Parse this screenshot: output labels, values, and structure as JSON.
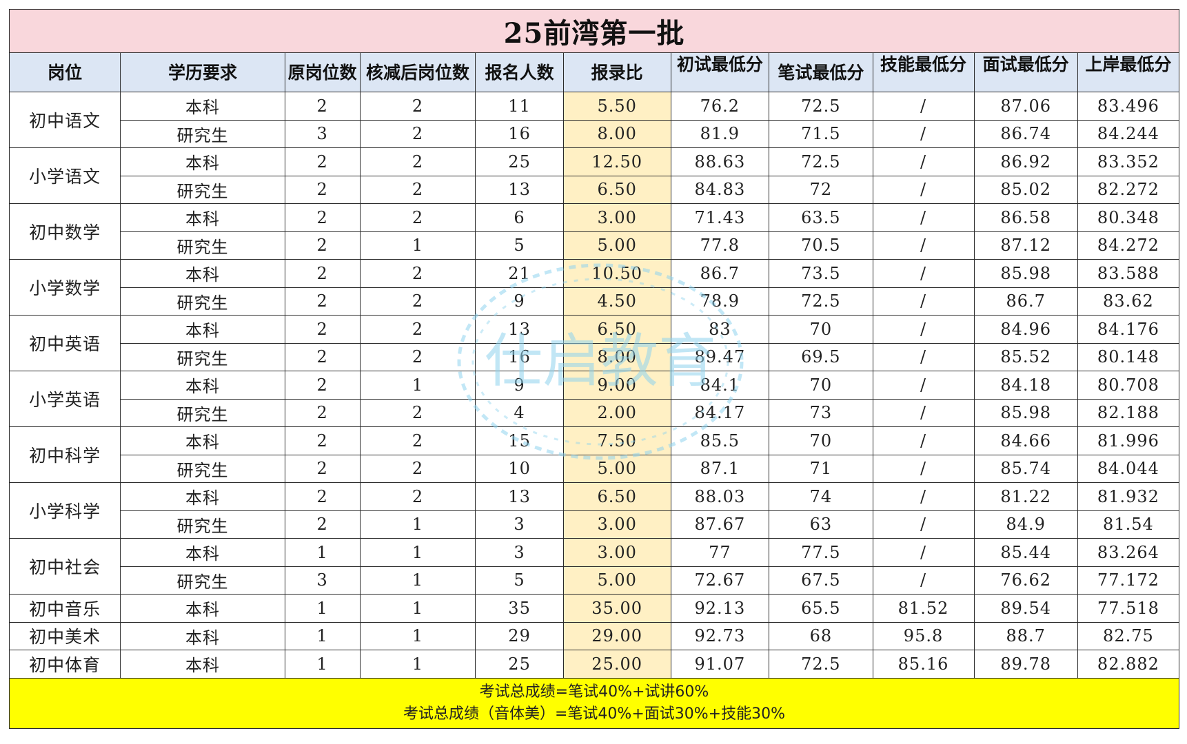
{
  "title": "25前湾第一批",
  "headers": [
    "岗位",
    "学历要求",
    "原岗位数",
    "核减后岗位数",
    "报名人数",
    "报录比",
    "初试最低分",
    "笔试最低分",
    "技能最低分",
    "面试最低分",
    "上岸最低分"
  ],
  "groups": [
    {
      "position": "初中语文",
      "rows": [
        [
          "本科",
          "2",
          "2",
          "11",
          "5.50",
          "76.2",
          "72.5",
          "/",
          "87.06",
          "83.496"
        ],
        [
          "研究生",
          "3",
          "2",
          "16",
          "8.00",
          "81.9",
          "71.5",
          "/",
          "86.74",
          "84.244"
        ]
      ]
    },
    {
      "position": "小学语文",
      "rows": [
        [
          "本科",
          "2",
          "2",
          "25",
          "12.50",
          "88.63",
          "72.5",
          "/",
          "86.92",
          "83.352"
        ],
        [
          "研究生",
          "2",
          "2",
          "13",
          "6.50",
          "84.83",
          "72",
          "/",
          "85.02",
          "82.272"
        ]
      ]
    },
    {
      "position": "初中数学",
      "rows": [
        [
          "本科",
          "2",
          "2",
          "6",
          "3.00",
          "71.43",
          "63.5",
          "/",
          "86.58",
          "80.348"
        ],
        [
          "研究生",
          "2",
          "1",
          "5",
          "5.00",
          "77.8",
          "70.5",
          "/",
          "87.12",
          "84.272"
        ]
      ]
    },
    {
      "position": "小学数学",
      "rows": [
        [
          "本科",
          "2",
          "2",
          "21",
          "10.50",
          "86.7",
          "73.5",
          "/",
          "85.98",
          "83.588"
        ],
        [
          "研究生",
          "2",
          "2",
          "9",
          "4.50",
          "78.9",
          "72.5",
          "/",
          "86.7",
          "83.62"
        ]
      ]
    },
    {
      "position": "初中英语",
      "rows": [
        [
          "本科",
          "2",
          "2",
          "13",
          "6.50",
          "83",
          "70",
          "/",
          "84.96",
          "84.176"
        ],
        [
          "研究生",
          "2",
          "2",
          "16",
          "8.00",
          "89.47",
          "69.5",
          "/",
          "85.52",
          "80.148"
        ]
      ]
    },
    {
      "position": "小学英语",
      "rows": [
        [
          "本科",
          "2",
          "1",
          "9",
          "9.00",
          "84.1",
          "70",
          "/",
          "84.18",
          "80.708"
        ],
        [
          "研究生",
          "2",
          "2",
          "4",
          "2.00",
          "84.17",
          "73",
          "/",
          "85.98",
          "82.188"
        ]
      ]
    },
    {
      "position": "初中科学",
      "rows": [
        [
          "本科",
          "2",
          "2",
          "15",
          "7.50",
          "85.5",
          "70",
          "/",
          "84.66",
          "81.996"
        ],
        [
          "研究生",
          "2",
          "2",
          "10",
          "5.00",
          "87.1",
          "71",
          "/",
          "85.74",
          "84.044"
        ]
      ]
    },
    {
      "position": "小学科学",
      "rows": [
        [
          "本科",
          "2",
          "2",
          "13",
          "6.50",
          "88.03",
          "74",
          "/",
          "81.22",
          "81.932"
        ],
        [
          "研究生",
          "2",
          "1",
          "3",
          "3.00",
          "87.67",
          "63",
          "/",
          "84.9",
          "81.54"
        ]
      ]
    },
    {
      "position": "初中社会",
      "rows": [
        [
          "本科",
          "1",
          "1",
          "3",
          "3.00",
          "77",
          "77.5",
          "/",
          "85.44",
          "83.264"
        ],
        [
          "研究生",
          "3",
          "1",
          "5",
          "5.00",
          "72.67",
          "67.5",
          "/",
          "76.62",
          "77.172"
        ]
      ]
    },
    {
      "position": "初中音乐",
      "rows": [
        [
          "本科",
          "1",
          "1",
          "35",
          "35.00",
          "92.13",
          "65.5",
          "81.52",
          "89.54",
          "77.518"
        ]
      ]
    },
    {
      "position": "初中美术",
      "rows": [
        [
          "本科",
          "1",
          "1",
          "29",
          "29.00",
          "92.73",
          "68",
          "95.8",
          "88.7",
          "82.75"
        ]
      ]
    },
    {
      "position": "初中体育",
      "rows": [
        [
          "本科",
          "1",
          "1",
          "25",
          "25.00",
          "91.07",
          "72.5",
          "85.16",
          "89.78",
          "82.882"
        ]
      ]
    }
  ],
  "footer": {
    "line1": "考试总成绩=笔试40%+试讲60%",
    "line2": "考试总成绩（音体美）=笔试40%+面试30%+技能30%"
  },
  "watermark": {
    "text": "仕启教育",
    "color": "#8fd3ee"
  },
  "colors": {
    "title_bg": "#f9d7dc",
    "header_bg": "#dce6f4",
    "ratio_bg": "#fff0c4",
    "footer_bg": "#ffff00"
  }
}
